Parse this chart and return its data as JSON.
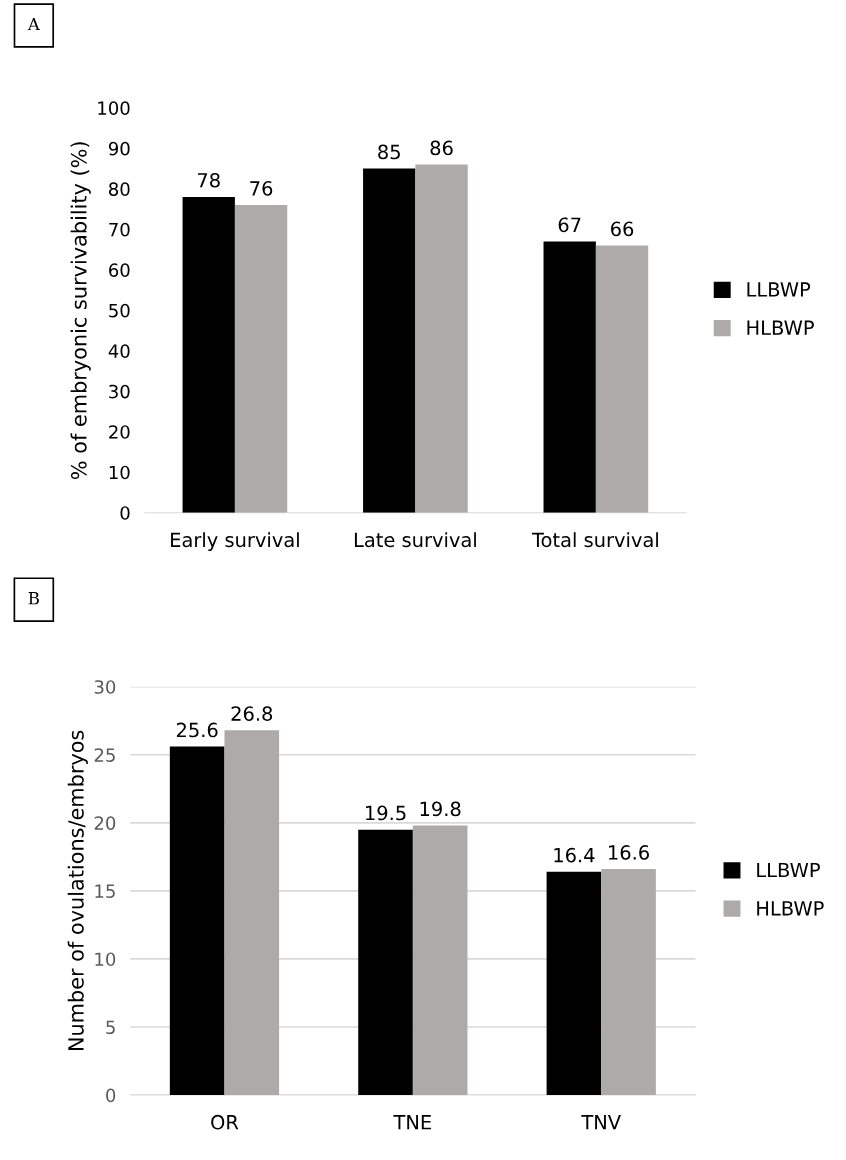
{
  "chart_data": [
    {
      "type": "bar",
      "title": "A",
      "ylabel": "% of embryonic survivability (%)",
      "categories": [
        "Early survival",
        "Late survival",
        "Total survival"
      ],
      "series": [
        {
          "name": "LLBWP",
          "color": "#000000",
          "values": [
            78,
            85,
            67
          ]
        },
        {
          "name": "HLBWP",
          "color": "#aeaaaa",
          "values": [
            76,
            86,
            66
          ]
        }
      ],
      "ylim": [
        0,
        100
      ],
      "yticks": [
        0,
        10,
        20,
        30,
        40,
        50,
        60,
        70,
        80,
        90,
        100
      ],
      "grid": false,
      "legend": "right",
      "data_labels": true
    },
    {
      "type": "bar",
      "title": "B",
      "ylabel": "Number of ovulations/embryos",
      "categories": [
        "OR",
        "TNE",
        "TNV"
      ],
      "series": [
        {
          "name": "LLBWP",
          "color": "#000000",
          "values": [
            25.6,
            19.5,
            16.4
          ]
        },
        {
          "name": "HLBWP",
          "color": "#aeaaaa",
          "values": [
            26.8,
            19.8,
            16.6
          ]
        }
      ],
      "ylim": [
        0,
        30
      ],
      "yticks": [
        0,
        5,
        10,
        15,
        20,
        25,
        30
      ],
      "grid": "y",
      "legend": "right",
      "data_labels": true
    }
  ]
}
